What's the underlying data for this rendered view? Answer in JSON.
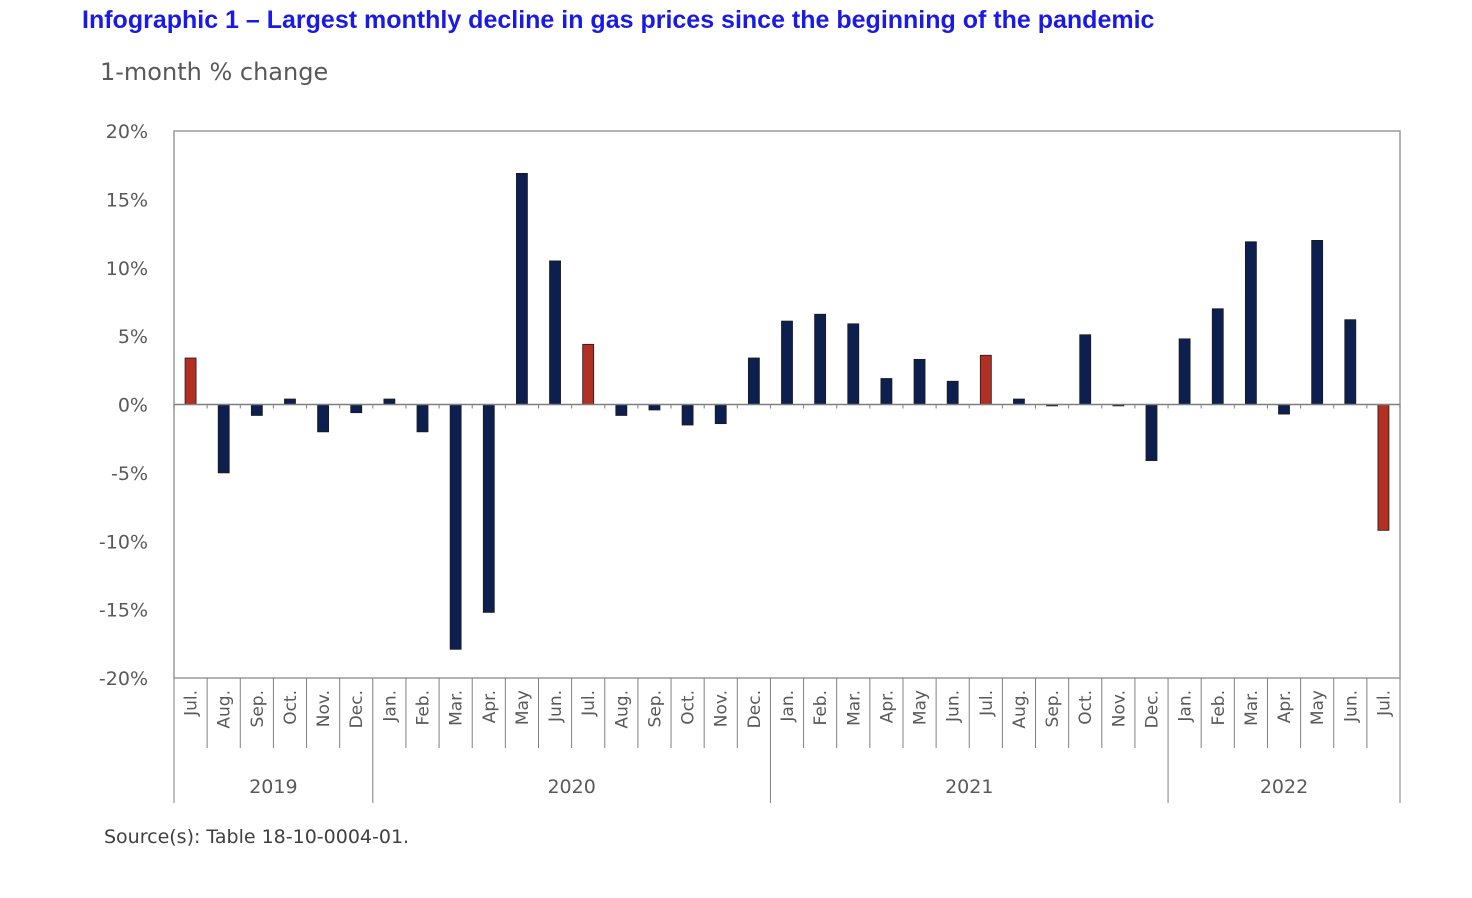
{
  "header": {
    "title": "Infographic 1 –  Largest monthly decline in gas prices since the beginning of the pandemic",
    "subtitle": "1-month % change"
  },
  "footer": {
    "source": "Source(s): Table 18-10-0004-01."
  },
  "colors": {
    "bar_default": "#0d1f4e",
    "bar_highlight": "#b22f24",
    "axis": "#7f7f7f",
    "tick_text": "#595959",
    "title": "#1a1ae6"
  },
  "chart_data": {
    "type": "bar",
    "title": "",
    "xlabel": "",
    "ylabel": "",
    "ylim": [
      -20,
      20
    ],
    "yticks": [
      20,
      15,
      10,
      5,
      0,
      -5,
      -10,
      -15,
      -20
    ],
    "ytick_labels": [
      "20%",
      "15%",
      "10%",
      "5%",
      "0%",
      "-5%",
      "-10%",
      "-15%",
      "-20%"
    ],
    "grid": false,
    "legend": "none",
    "categories": [
      "Jul.",
      "Aug.",
      "Sep.",
      "Oct.",
      "Nov.",
      "Dec.",
      "Jan.",
      "Feb.",
      "Mar.",
      "Apr.",
      "May",
      "Jun.",
      "Jul.",
      "Aug.",
      "Sep.",
      "Oct.",
      "Nov.",
      "Dec.",
      "Jan.",
      "Feb.",
      "Mar.",
      "Apr.",
      "May",
      "Jun.",
      "Jul.",
      "Aug.",
      "Sep.",
      "Oct.",
      "Nov.",
      "Dec.",
      "Jan.",
      "Feb.",
      "Mar.",
      "Apr.",
      "May",
      "Jun.",
      "Jul."
    ],
    "values": [
      3.4,
      -5.0,
      -0.8,
      0.4,
      -2.0,
      -0.6,
      0.4,
      -2.0,
      -17.9,
      -15.2,
      16.9,
      10.5,
      4.4,
      -0.8,
      -0.4,
      -1.5,
      -1.4,
      3.4,
      6.1,
      6.6,
      5.9,
      1.9,
      3.3,
      1.7,
      3.6,
      0.4,
      -0.1,
      5.1,
      -0.1,
      -4.1,
      4.8,
      7.0,
      11.9,
      -0.7,
      12.0,
      6.2,
      -9.2
    ],
    "highlighted_indices": [
      0,
      12,
      24,
      36
    ],
    "year_groups": [
      {
        "label": "2019",
        "start": 0,
        "count": 6
      },
      {
        "label": "2020",
        "start": 6,
        "count": 12
      },
      {
        "label": "2021",
        "start": 18,
        "count": 12
      },
      {
        "label": "2022",
        "start": 30,
        "count": 7
      }
    ]
  }
}
